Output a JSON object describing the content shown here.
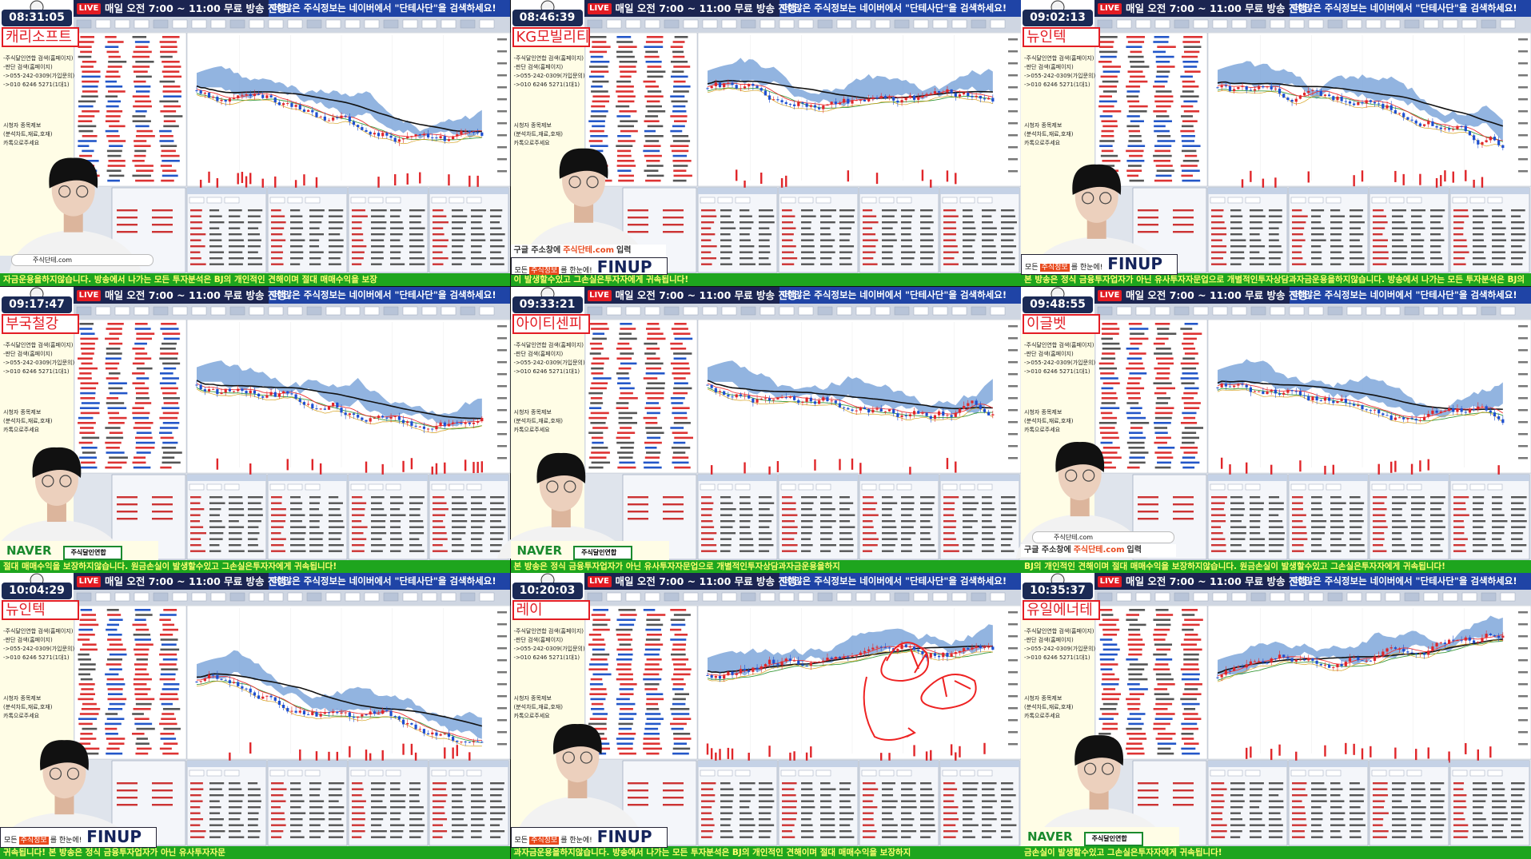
{
  "header": {
    "live": "LIVE",
    "schedule": "매일 오전 7:00 ~ 11:00 무료 방송 진행",
    "notice": "더 많은 주식정보는 네이버에서 \"단테사단\"을 검색하세요!"
  },
  "side_notes": [
    "-주식달인연합 검색(홈페이지)",
    "-판단 검색(홈페이지)",
    "->055-242-0309(가입문의)",
    "->010 6246 5271(1대1)",
    "시청자 종목제보",
    "(분석차트,재료,호재)",
    "카톡으로주세요"
  ],
  "logos": {
    "finup_pre": "모든",
    "finup_hl": "주식정보",
    "finup_post": "를 한눈에!",
    "finup": "FINUP",
    "naver": "NAVER",
    "naver_tag": "주식달인연합",
    "google_search": "주식단테.com",
    "hint_pre": "구글 주소창에",
    "hint_hl": "주식단테.com",
    "hint_post": "입력"
  },
  "tiles": [
    {
      "time": "08:31:05",
      "stock": "캐리소프트",
      "logo": [
        "google"
      ],
      "ticker": "자금운용을하지않습니다. 방송에서 나가는 모든 투자분석은 BJ의 개인적인 견해이며 절대 매매수익을 보장"
    },
    {
      "time": "08:46:39",
      "stock": "KG모빌리티",
      "logo": [
        "hint",
        "finup"
      ],
      "ticker": "이 발생할수있고 그손실은투자자에게 귀속됩니다!"
    },
    {
      "time": "09:02:13",
      "stock": "뉴인텍",
      "logo": [
        "finup"
      ],
      "ticker": "본 방송은 정식 금융투자업자가 아닌 유사투자자문업으로 개별적인투자상담과자금운용을하지않습니다. 방송에서 나가는 모든 투자분석은 BJ의"
    },
    {
      "time": "09:17:47",
      "stock": "부국철강",
      "logo": [
        "naver"
      ],
      "ticker": "절대 매매수익을 보장하지않습니다. 원금손실이 발생할수있고 그손실은투자자에게 귀속됩니다!"
    },
    {
      "time": "09:33:21",
      "stock": "아이티센피",
      "logo": [
        "naver"
      ],
      "ticker": "본 방송은 정식 금융투자업자가 아닌 유사투자자문업으로 개별적인투자상담과자금운용을하지"
    },
    {
      "time": "09:48:55",
      "stock": "이글벳",
      "logo": [
        "google",
        "hint"
      ],
      "ticker": "BJ의 개인적인 견해이며 절대 매매수익을 보장하지않습니다. 원금손실이 발생할수있고 그손실은투자자에게 귀속됩니다!"
    },
    {
      "time": "10:04:29",
      "stock": "뉴인텍",
      "logo": [
        "finup"
      ],
      "ticker": "귀속됩니다!     본 방송은 정식 금융투자업자가 아닌 유사투자자문"
    },
    {
      "time": "10:20:03",
      "stock": "레이",
      "logo": [
        "finup"
      ],
      "ticker": "과자금운용을하지않습니다. 방송에서 나가는 모든 투자분석은 BJ의 개인적인 견해이며 절대 매매수익을 보장하지"
    },
    {
      "time": "10:35:37",
      "stock": "유일에너테",
      "logo": [
        "naver"
      ],
      "ticker": "금손실이 발생할수있고 그손실은투자자에게 귀속됩니다!"
    }
  ]
}
